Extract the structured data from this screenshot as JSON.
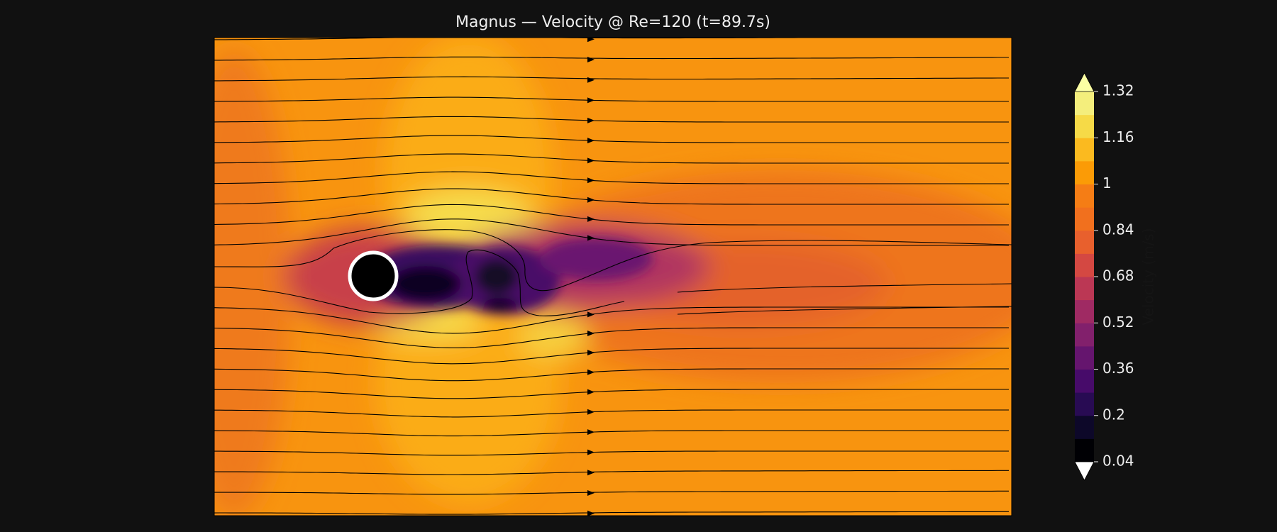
{
  "chart_data": {
    "type": "contour",
    "title": "Magnus — Velocity @ Re=120 (t=89.7s)",
    "colorbar_label": "Velocity (m/s)",
    "clim": [
      0.04,
      1.32
    ],
    "cticks": [
      0.04,
      0.2,
      0.36,
      0.52,
      0.68,
      0.84,
      1.0,
      1.16,
      1.32
    ],
    "colormap": [
      "#000004",
      "#0d0829",
      "#280b53",
      "#470b6a",
      "#65156e",
      "#82206c",
      "#9f2a63",
      "#bb3754",
      "#d44842",
      "#e8602d",
      "#f1701e",
      "#f57d15",
      "#fb9b06",
      "#fbba1f",
      "#f6da47",
      "#f4ee7c"
    ],
    "under_color": "#ffffff",
    "over_color": "#fcffa4"
  }
}
